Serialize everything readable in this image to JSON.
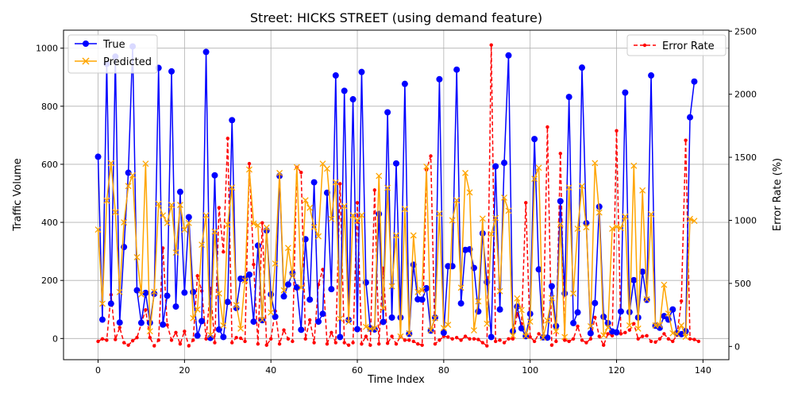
{
  "chart_data": {
    "type": "line",
    "title": "Street: HICKS STREET (using demand feature)",
    "xlabel": "Time Index",
    "ylabel": "Traffic Volume",
    "y2label": "Error Rate (%)",
    "xlim": [
      -8,
      146
    ],
    "ylim": [
      -73,
      1062
    ],
    "y2lim": [
      -105,
      2508
    ],
    "xticks": [
      0,
      20,
      40,
      60,
      80,
      100,
      120,
      140
    ],
    "yticks": [
      0,
      200,
      400,
      600,
      800,
      1000
    ],
    "y2ticks": [
      0,
      500,
      1000,
      1500,
      2000,
      2500
    ],
    "grid": true,
    "legend_left_placement": "upper-left",
    "legend_right_placement": "upper-right",
    "series": [
      {
        "name": "True",
        "axis": "left",
        "color": "#0000ff",
        "marker": "circle",
        "linestyle": "solid",
        "values": [
          626,
          65,
          946,
          120,
          971,
          55,
          315,
          571,
          1006,
          166,
          54,
          157,
          54,
          154,
          932,
          48,
          147,
          920,
          110,
          505,
          158,
          418,
          160,
          10,
          60,
          987,
          2,
          562,
          31,
          5,
          126,
          752,
          105,
          206,
          206,
          220,
          58,
          320,
          63,
          372,
          152,
          75,
          560,
          145,
          186,
          225,
          176,
          30,
          342,
          134,
          538,
          58,
          85,
          502,
          170,
          906,
          5,
          853,
          64,
          824,
          32,
          918,
          193,
          34,
          31,
          429,
          57,
          779,
          72,
          603,
          72,
          877,
          16,
          254,
          135,
          134,
          173,
          27,
          72,
          893,
          20,
          249,
          249,
          926,
          121,
          305,
          307,
          243,
          93,
          362,
          194,
          5,
          593,
          100,
          605,
          975,
          25,
          110,
          35,
          8,
          85,
          687,
          238,
          4,
          3,
          180,
          43,
          473,
          155,
          832,
          53,
          90,
          933,
          397,
          18,
          122,
          454,
          75,
          53,
          24,
          21,
          93,
          847,
          91,
          201,
          72,
          230,
          133,
          906,
          44,
          37,
          77,
          65,
          100,
          18,
          15,
          25,
          762,
          885
        ]
      },
      {
        "name": "Predicted",
        "axis": "left",
        "color": "#ffa500",
        "marker": "x",
        "linestyle": "solid",
        "values": [
          375,
          120,
          475,
          604,
          435,
          160,
          400,
          525,
          562,
          280,
          152,
          602,
          25,
          161,
          464,
          424,
          398,
          460,
          296,
          460,
          375,
          398,
          70,
          100,
          323,
          424,
          12,
          368,
          155,
          45,
          392,
          520,
          115,
          34,
          200,
          582,
          396,
          390,
          65,
          382,
          90,
          258,
          570,
          166,
          312,
          215,
          590,
          175,
          476,
          450,
          384,
          352,
          602,
          585,
          412,
          538,
          68,
          456,
          57,
          424,
          405,
          425,
          40,
          33,
          35,
          560,
          104,
          519,
          180,
          355,
          7,
          446,
          18,
          355,
          160,
          166,
          592,
          28,
          70,
          430,
          36,
          47,
          407,
          476,
          175,
          570,
          503,
          28,
          128,
          413,
          51,
          360,
          415,
          163,
          485,
          440,
          10,
          138,
          98,
          8,
          58,
          550,
          588,
          3,
          62,
          139,
          25,
          393,
          5,
          520,
          155,
          378,
          525,
          383,
          42,
          604,
          434,
          11,
          38,
          378,
          385,
          380,
          420,
          45,
          595,
          34,
          510,
          135,
          428,
          45,
          47,
          185,
          86,
          18,
          15,
          45,
          6,
          412,
          405
        ]
      },
      {
        "name": "Error Rate",
        "axis": "right",
        "color": "#ff0000",
        "marker": "point",
        "linestyle": "dashed",
        "values": [
          40,
          60,
          50,
          410,
          55,
          150,
          30,
          10,
          45,
          70,
          180,
          290,
          70,
          5,
          50,
          780,
          170,
          50,
          110,
          20,
          120,
          5,
          50,
          560,
          440,
          60,
          460,
          30,
          1100,
          750,
          1650,
          30,
          70,
          65,
          40,
          1450,
          650,
          20,
          980,
          10,
          60,
          280,
          20,
          130,
          60,
          40,
          1420,
          1380,
          60,
          210,
          30,
          490,
          610,
          20,
          110,
          30,
          1290,
          30,
          10,
          30,
          1140,
          20,
          80,
          10,
          1240,
          20,
          620,
          25,
          80,
          20,
          80,
          50,
          50,
          40,
          20,
          10,
          1400,
          1510,
          20,
          50,
          80,
          75,
          60,
          70,
          50,
          80,
          60,
          60,
          55,
          30,
          5,
          2390,
          40,
          50,
          30,
          60,
          60,
          260,
          180,
          1140,
          75,
          40,
          100,
          75,
          1740,
          10,
          40,
          1530,
          50,
          40,
          60,
          160,
          50,
          30,
          60,
          230,
          80,
          10,
          100,
          85,
          1710,
          100,
          110,
          130,
          180,
          60,
          80,
          85,
          40,
          35,
          60,
          100,
          60,
          40,
          90,
          360,
          1635,
          60,
          55,
          40
        ]
      }
    ]
  }
}
